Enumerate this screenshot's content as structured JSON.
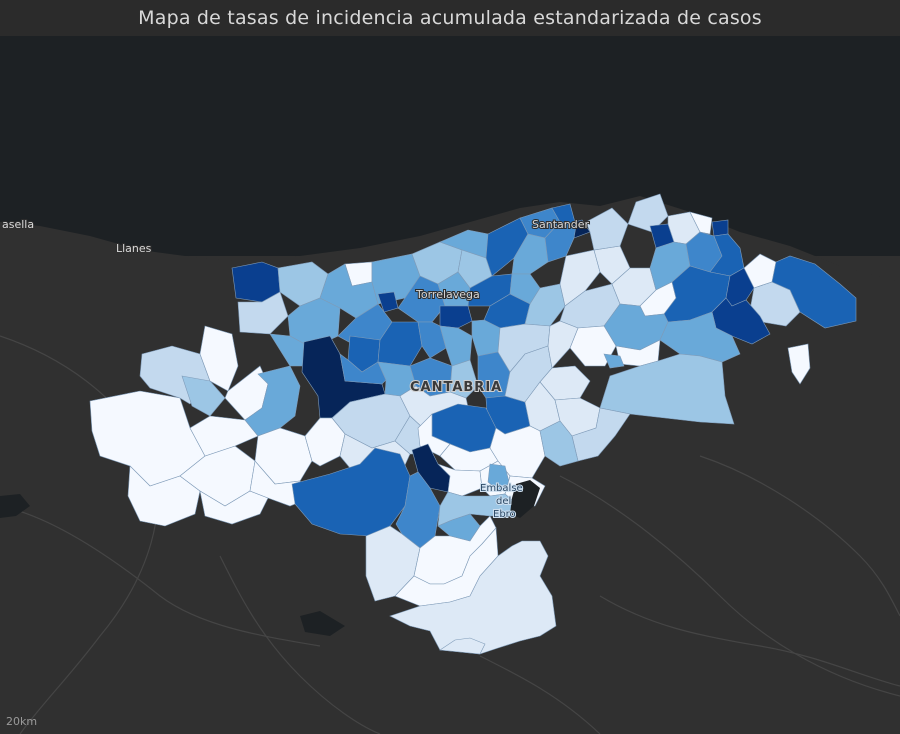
{
  "title": "Mapa de tasas de incidencia acumulada estandarizada de casos",
  "labels": {
    "santander": "Santander",
    "torrelavega": "Torrelavega",
    "llanes": "Llanes",
    "ribadesella": "asella",
    "region": "CANTABRIA",
    "reservoir_1": "Embalse",
    "reservoir_2": "del",
    "reservoir_3": "Ebro"
  },
  "scale": {
    "label": "20km"
  },
  "colors": {
    "sea": "#1d2124",
    "land": "#303030",
    "road": "#454545",
    "class_1": "#f5f9ff",
    "class_2": "#dde9f6",
    "class_3": "#c3d9ee",
    "class_4": "#9cc6e5",
    "class_5": "#69a9d9",
    "class_6": "#3e86cb",
    "class_7": "#1a63b4",
    "class_8": "#0a3f8f",
    "class_9": "#062559",
    "outline": "#8fa9c4"
  }
}
